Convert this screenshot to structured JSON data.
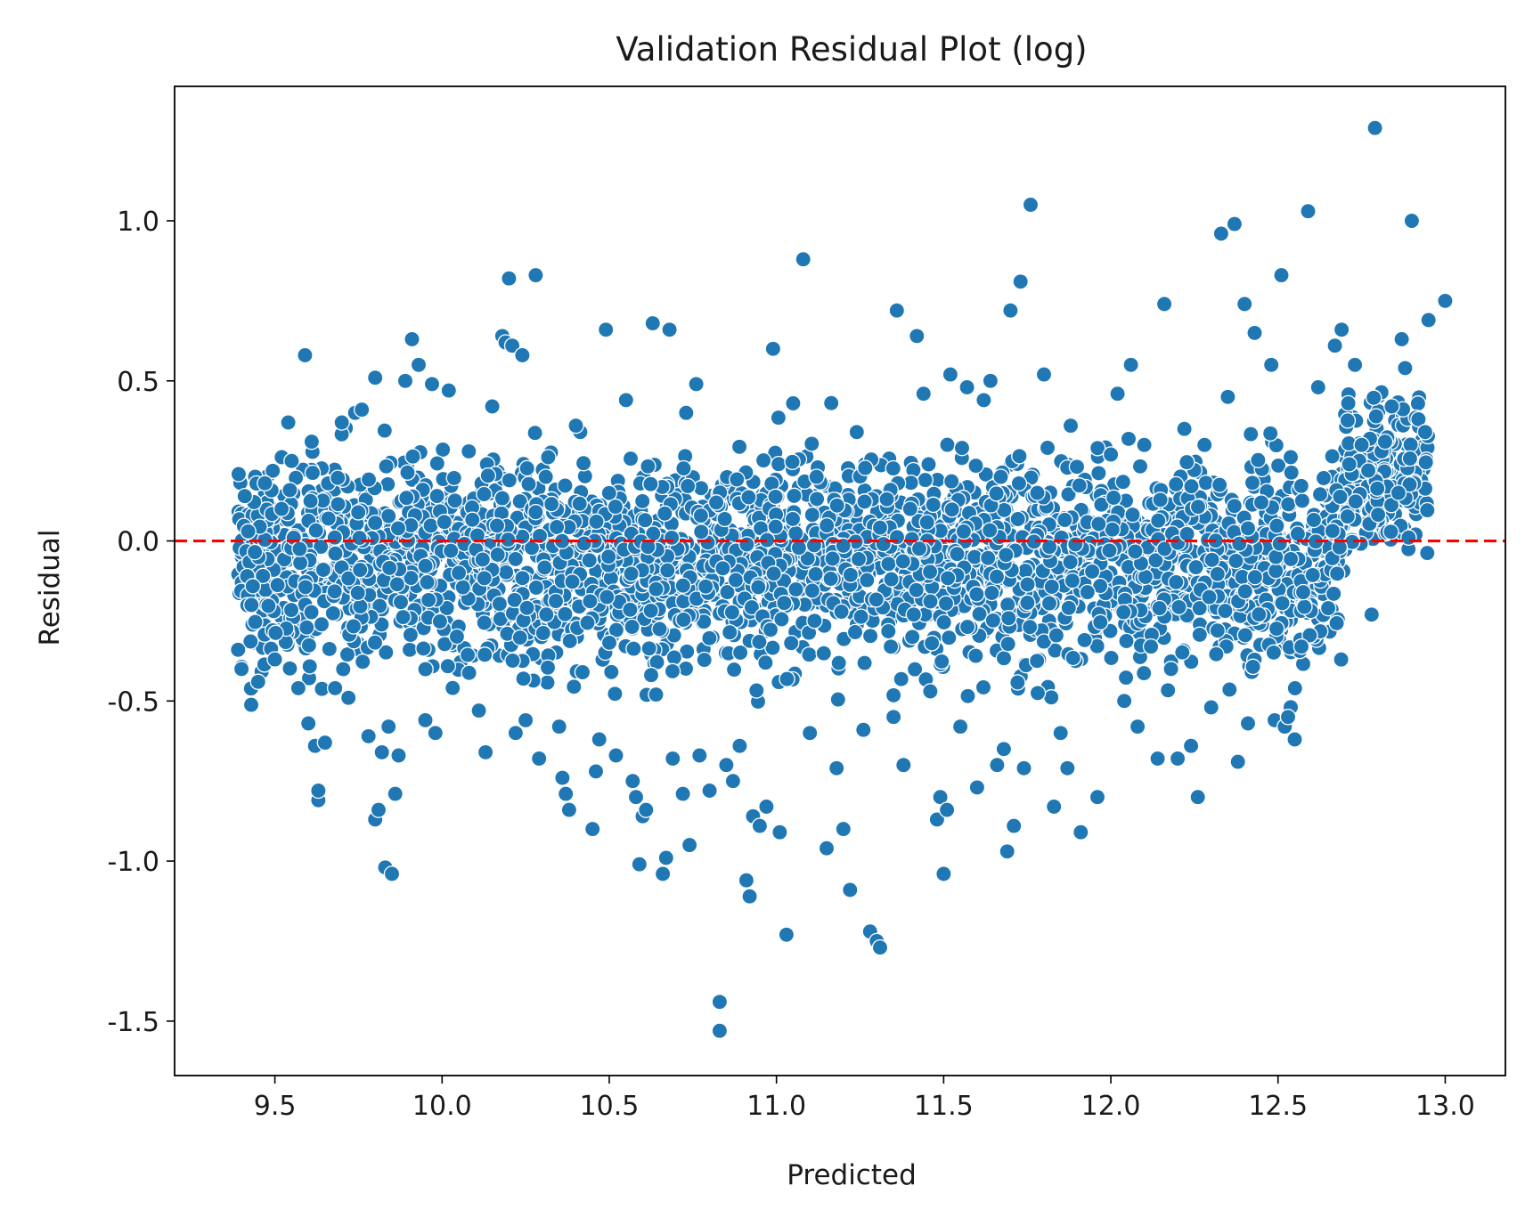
{
  "chart_data": {
    "type": "scatter",
    "title": "Validation Residual Plot (log)",
    "xlabel": "Predicted",
    "ylabel": "Residual",
    "xlim": [
      9.2,
      13.18
    ],
    "ylim": [
      -1.67,
      1.42
    ],
    "x_ticks": [
      9.5,
      10.0,
      10.5,
      11.0,
      11.5,
      12.0,
      12.5,
      13.0
    ],
    "x_tick_labels": [
      "9.5",
      "10.0",
      "10.5",
      "11.0",
      "11.5",
      "12.0",
      "12.5",
      "13.0"
    ],
    "y_ticks": [
      -1.5,
      -1.0,
      -0.5,
      0.0,
      0.5,
      1.0
    ],
    "y_tick_labels": [
      "-1.5",
      "-1.0",
      "-0.5",
      "0.0",
      "0.5",
      "1.0"
    ],
    "grid": false,
    "reference_line": {
      "y": 0,
      "style": "dashed",
      "color": "#ff0000"
    },
    "marker_color": "#1f77b4",
    "marker_edge_color": "#ffffff",
    "series": [
      {
        "points": [
          [
            9.39,
            -0.34
          ],
          [
            9.4,
            -0.4
          ],
          [
            9.41,
            0.14
          ],
          [
            9.42,
            0.03
          ],
          [
            9.43,
            -0.2
          ],
          [
            9.45,
            -0.44
          ],
          [
            9.47,
            0.18
          ],
          [
            9.5,
            -0.37
          ],
          [
            9.52,
            0.1
          ],
          [
            9.54,
            0.37
          ],
          [
            9.55,
            0.25
          ],
          [
            9.57,
            -0.46
          ],
          [
            9.59,
            0.58
          ],
          [
            9.6,
            -0.57
          ],
          [
            9.61,
            0.31
          ],
          [
            9.62,
            -0.64
          ],
          [
            9.63,
            -0.81
          ],
          [
            9.63,
            -0.78
          ],
          [
            9.65,
            -0.63
          ],
          [
            9.66,
            0.07
          ],
          [
            9.68,
            -0.46
          ],
          [
            9.7,
            0.37
          ],
          [
            9.72,
            -0.49
          ],
          [
            9.74,
            0.4
          ],
          [
            9.76,
            0.41
          ],
          [
            9.78,
            -0.61
          ],
          [
            9.8,
            0.51
          ],
          [
            9.8,
            -0.87
          ],
          [
            9.81,
            -0.84
          ],
          [
            9.82,
            -0.66
          ],
          [
            9.83,
            -1.02
          ],
          [
            9.85,
            -1.04
          ],
          [
            9.84,
            -0.58
          ],
          [
            9.86,
            -0.79
          ],
          [
            9.87,
            -0.67
          ],
          [
            9.89,
            0.5
          ],
          [
            9.91,
            0.63
          ],
          [
            9.93,
            0.55
          ],
          [
            9.95,
            -0.56
          ],
          [
            9.97,
            0.49
          ],
          [
            9.98,
            -0.6
          ],
          [
            10.02,
            0.47
          ],
          [
            10.05,
            -0.1
          ],
          [
            10.08,
            0.28
          ],
          [
            10.11,
            -0.53
          ],
          [
            10.13,
            -0.66
          ],
          [
            10.15,
            0.42
          ],
          [
            10.18,
            0.64
          ],
          [
            10.19,
            0.62
          ],
          [
            10.2,
            0.82
          ],
          [
            10.21,
            0.61
          ],
          [
            10.22,
            -0.6
          ],
          [
            10.24,
            0.58
          ],
          [
            10.25,
            -0.56
          ],
          [
            10.28,
            0.83
          ],
          [
            10.29,
            -0.68
          ],
          [
            10.31,
            0.2
          ],
          [
            10.35,
            -0.58
          ],
          [
            10.36,
            -0.74
          ],
          [
            10.37,
            -0.79
          ],
          [
            10.38,
            -0.84
          ],
          [
            10.4,
            0.36
          ],
          [
            10.42,
            -0.41
          ],
          [
            10.45,
            -0.9
          ],
          [
            10.46,
            -0.72
          ],
          [
            10.47,
            -0.62
          ],
          [
            10.49,
            0.66
          ],
          [
            10.52,
            -0.67
          ],
          [
            10.55,
            0.44
          ],
          [
            10.57,
            -0.75
          ],
          [
            10.58,
            -0.8
          ],
          [
            10.59,
            -1.01
          ],
          [
            10.6,
            -0.86
          ],
          [
            10.61,
            -0.84
          ],
          [
            10.63,
            0.68
          ],
          [
            10.64,
            -0.48
          ],
          [
            10.66,
            -1.04
          ],
          [
            10.67,
            -0.99
          ],
          [
            10.68,
            0.66
          ],
          [
            10.69,
            -0.68
          ],
          [
            10.72,
            -0.79
          ],
          [
            10.73,
            0.4
          ],
          [
            10.74,
            -0.95
          ],
          [
            10.76,
            0.49
          ],
          [
            10.77,
            -0.67
          ],
          [
            10.8,
            -0.78
          ],
          [
            10.82,
            0.12
          ],
          [
            10.83,
            -1.44
          ],
          [
            10.83,
            -1.53
          ],
          [
            10.85,
            -0.7
          ],
          [
            10.87,
            -0.75
          ],
          [
            10.89,
            -0.64
          ],
          [
            10.91,
            -1.06
          ],
          [
            10.92,
            -1.11
          ],
          [
            10.93,
            -0.86
          ],
          [
            10.95,
            -0.89
          ],
          [
            10.97,
            -0.83
          ],
          [
            10.99,
            0.6
          ],
          [
            11.01,
            -0.91
          ],
          [
            11.03,
            -1.23
          ],
          [
            11.05,
            0.43
          ],
          [
            11.08,
            0.88
          ],
          [
            11.1,
            -0.6
          ],
          [
            11.12,
            0.2
          ],
          [
            11.15,
            -0.96
          ],
          [
            11.18,
            -0.71
          ],
          [
            11.2,
            -0.9
          ],
          [
            11.22,
            -1.09
          ],
          [
            11.24,
            0.34
          ],
          [
            11.26,
            -0.59
          ],
          [
            11.28,
            -1.22
          ],
          [
            11.3,
            -1.25
          ],
          [
            11.31,
            -1.27
          ],
          [
            11.33,
            0.13
          ],
          [
            11.35,
            -0.55
          ],
          [
            11.36,
            0.72
          ],
          [
            11.38,
            -0.7
          ],
          [
            11.4,
            0.1
          ],
          [
            11.42,
            0.64
          ],
          [
            11.44,
            0.46
          ],
          [
            11.46,
            -0.47
          ],
          [
            11.48,
            -0.87
          ],
          [
            11.49,
            -0.8
          ],
          [
            11.5,
            -1.04
          ],
          [
            11.51,
            -0.84
          ],
          [
            11.52,
            0.52
          ],
          [
            11.55,
            -0.58
          ],
          [
            11.57,
            0.48
          ],
          [
            11.6,
            -0.77
          ],
          [
            11.62,
            0.44
          ],
          [
            11.64,
            0.5
          ],
          [
            11.66,
            -0.7
          ],
          [
            11.68,
            -0.65
          ],
          [
            11.69,
            -0.97
          ],
          [
            11.7,
            0.72
          ],
          [
            11.71,
            -0.89
          ],
          [
            11.73,
            0.81
          ],
          [
            11.74,
            -0.71
          ],
          [
            11.76,
            1.05
          ],
          [
            11.78,
            0.15
          ],
          [
            11.8,
            0.52
          ],
          [
            11.83,
            -0.83
          ],
          [
            11.85,
            -0.6
          ],
          [
            11.87,
            -0.71
          ],
          [
            11.88,
            0.36
          ],
          [
            11.91,
            -0.91
          ],
          [
            11.93,
            -0.16
          ],
          [
            11.96,
            -0.8
          ],
          [
            12.0,
            0.27
          ],
          [
            12.02,
            0.46
          ],
          [
            12.04,
            -0.5
          ],
          [
            12.06,
            0.55
          ],
          [
            12.08,
            -0.58
          ],
          [
            12.1,
            0.3
          ],
          [
            12.12,
            -0.33
          ],
          [
            12.14,
            -0.68
          ],
          [
            12.16,
            0.74
          ],
          [
            12.18,
            -0.4
          ],
          [
            12.2,
            -0.68
          ],
          [
            12.22,
            0.35
          ],
          [
            12.24,
            -0.64
          ],
          [
            12.26,
            -0.8
          ],
          [
            12.28,
            0.3
          ],
          [
            12.3,
            -0.52
          ],
          [
            12.33,
            0.96
          ],
          [
            12.35,
            0.45
          ],
          [
            12.37,
            0.99
          ],
          [
            12.38,
            -0.69
          ],
          [
            12.4,
            0.74
          ],
          [
            12.41,
            -0.57
          ],
          [
            12.43,
            0.65
          ],
          [
            12.45,
            0.12
          ],
          [
            12.48,
            0.55
          ],
          [
            12.49,
            -0.56
          ],
          [
            12.51,
            0.83
          ],
          [
            12.52,
            -0.58
          ],
          [
            12.53,
            -0.55
          ],
          [
            12.55,
            -0.62
          ],
          [
            12.57,
            -0.33
          ],
          [
            12.59,
            1.03
          ],
          [
            12.62,
            0.48
          ],
          [
            12.65,
            -0.21
          ],
          [
            12.67,
            0.61
          ],
          [
            12.69,
            0.66
          ],
          [
            12.71,
            0.43
          ],
          [
            12.73,
            0.55
          ],
          [
            12.75,
            0.3
          ],
          [
            12.77,
            0.22
          ],
          [
            12.78,
            -0.23
          ],
          [
            12.79,
            1.29
          ],
          [
            12.82,
            0.31
          ],
          [
            12.84,
            0.42
          ],
          [
            12.86,
            0.15
          ],
          [
            12.87,
            0.63
          ],
          [
            12.88,
            0.54
          ],
          [
            12.9,
            1.0
          ],
          [
            12.92,
            0.38
          ],
          [
            12.94,
            0.34
          ],
          [
            12.95,
            0.69
          ],
          [
            13.0,
            0.75
          ]
        ]
      }
    ]
  }
}
